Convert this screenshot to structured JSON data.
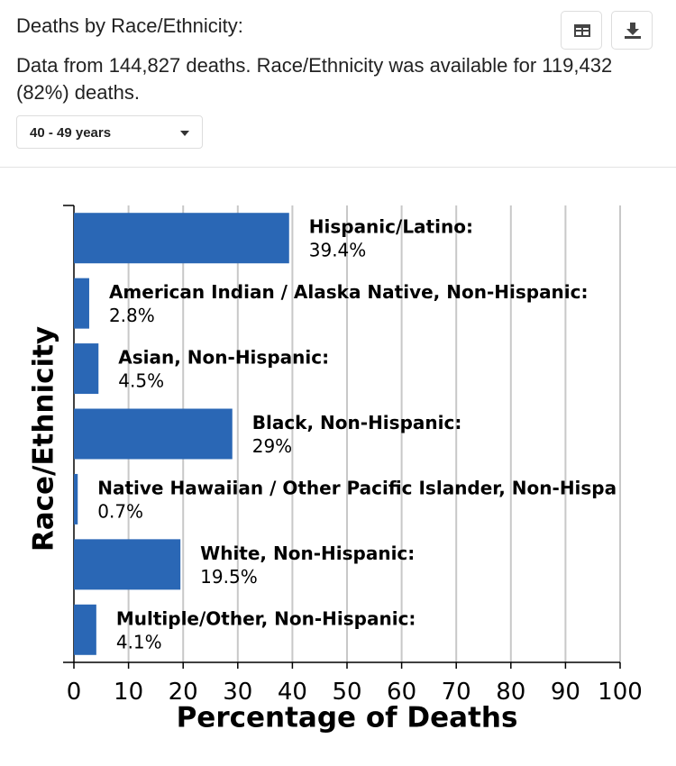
{
  "header": {
    "title": "Deaths by Race/Ethnicity:",
    "subtitle": "Data from 144,827 deaths. Race/Ethnicity was available for 119,432 (82%) deaths.",
    "dropdown": "40 - 49 years"
  },
  "chart_data": {
    "type": "bar",
    "orientation": "horizontal",
    "x_label": "Percentage of Deaths",
    "y_label": "Race/Ethnicity",
    "categories": [
      "Hispanic/Latino:",
      "American Indian / Alaska Native, Non-Hispanic:",
      "Asian, Non-Hispanic:",
      "Black, Non-Hispanic:",
      "Native Hawaiian / Other Pacific Islander, Non-Hispa",
      "White, Non-Hispanic:",
      "Multiple/Other, Non-Hispanic:"
    ],
    "values": [
      39.4,
      2.8,
      4.5,
      29,
      0.7,
      19.5,
      4.1
    ],
    "value_labels": [
      "39.4%",
      "2.8%",
      "4.5%",
      "29%",
      "0.7%",
      "19.5%",
      "4.1%"
    ],
    "color": "#2a67b5",
    "xlim": [
      0,
      100
    ],
    "xticks": [
      0,
      10,
      20,
      30,
      40,
      50,
      60,
      70,
      80,
      90,
      100
    ],
    "grid": true
  }
}
